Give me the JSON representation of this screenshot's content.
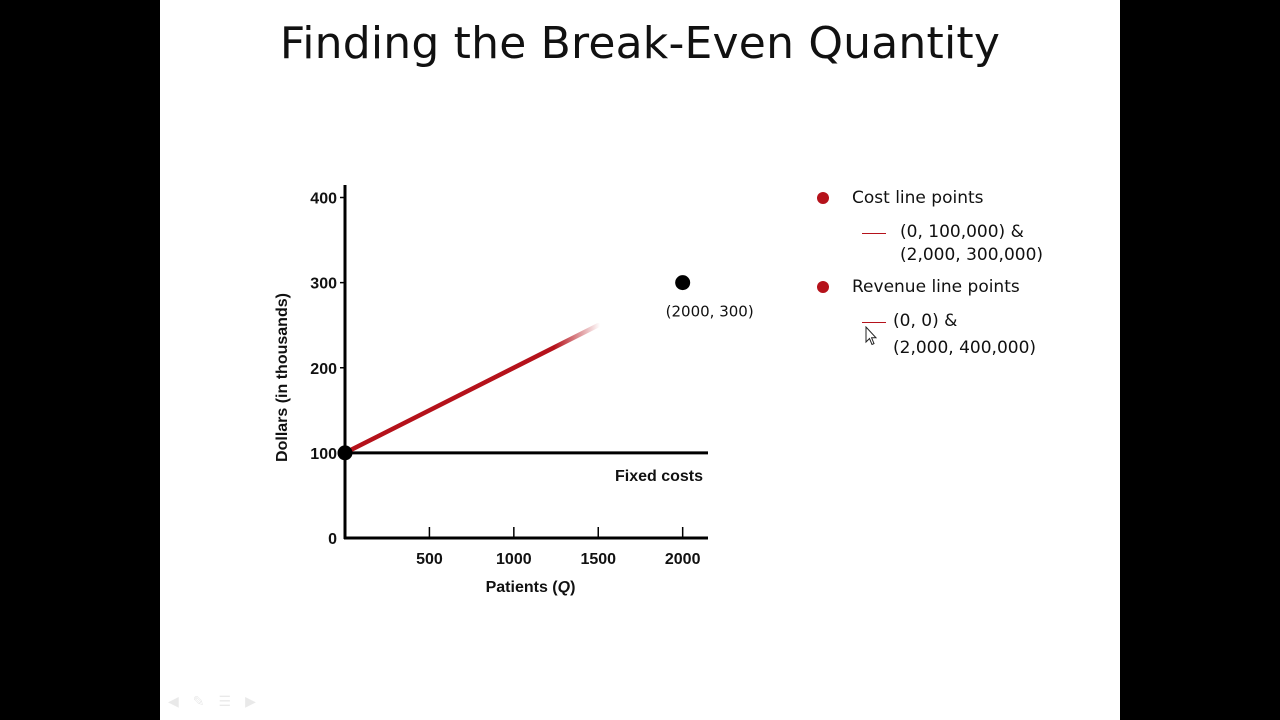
{
  "slide": {
    "title": "Finding the Break-Even Quantity"
  },
  "legend": {
    "cost_heading": "Cost line points",
    "cost_detail_line1": "(0, 100,000) &",
    "cost_detail_line2": "(2,000, 300,000)",
    "revenue_heading": "Revenue line points",
    "revenue_detail_line1": "(0, 0) &",
    "revenue_detail_line2": "(2,000, 400,000)"
  },
  "colors": {
    "accent": "#b5121b",
    "axis": "#000000",
    "background": "#ffffff"
  },
  "chart_data": {
    "type": "line",
    "xlabel_prefix": "Patients (",
    "xlabel_var": "Q",
    "xlabel_suffix": ")",
    "ylabel": "Dollars (in thousands)",
    "xlim": [
      0,
      2150
    ],
    "ylim": [
      0,
      410
    ],
    "x_ticks": [
      500,
      1000,
      1500,
      2000
    ],
    "x_tick_labels": [
      "500",
      "1000",
      "1500",
      "2000"
    ],
    "y_ticks": [
      0,
      100,
      200,
      300,
      400
    ],
    "y_tick_labels": [
      "0",
      "100",
      "200",
      "300",
      "400"
    ],
    "series": [
      {
        "role": "fixed-costs",
        "label": "Fixed costs",
        "color": "#000000",
        "points": [
          [
            0,
            100
          ],
          [
            2150,
            100
          ]
        ]
      },
      {
        "role": "cost-line-partial",
        "color": "#b5121b",
        "points": [
          [
            0,
            100
          ],
          [
            1500,
            250
          ]
        ]
      }
    ],
    "points": [
      {
        "role": "origin-cost",
        "x": 0,
        "y": 100,
        "label": ""
      },
      {
        "role": "cost-end",
        "x": 2000,
        "y": 300,
        "label": "(2000, 300)"
      }
    ]
  }
}
